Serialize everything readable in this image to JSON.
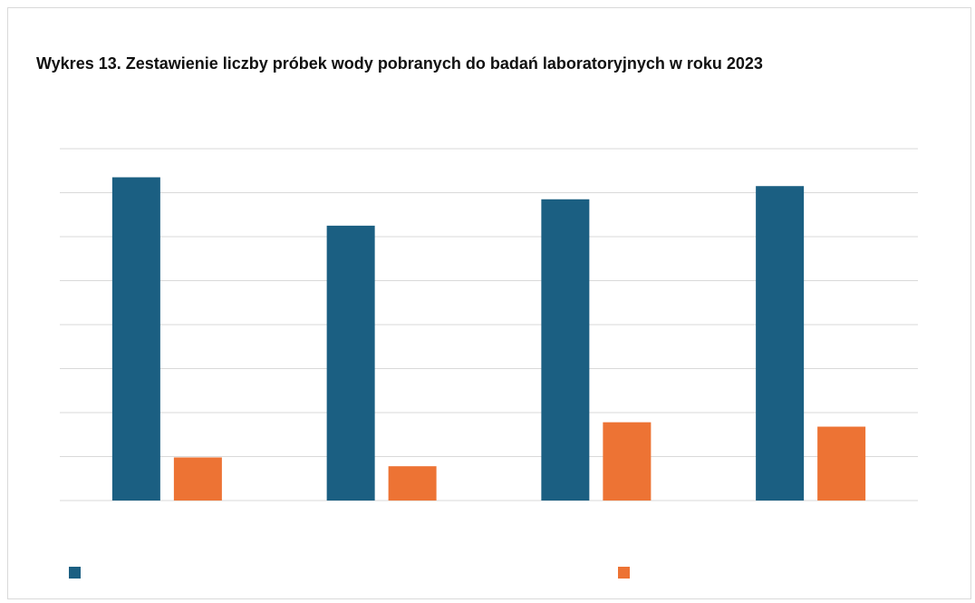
{
  "chart_data": {
    "type": "bar",
    "title": "Wykres 13. Zestawienie liczby próbek wody pobranych do badań laboratoryjnych w roku 2023",
    "xlabel": "",
    "ylabel": "",
    "categories": [
      "",
      "",
      "",
      ""
    ],
    "ylim": [
      0,
      8
    ],
    "grid": true,
    "legend_position": "bottom",
    "series": [
      {
        "name": "",
        "color": "#1b5f82",
        "values": [
          7.35,
          6.25,
          6.85,
          7.15
        ]
      },
      {
        "name": "",
        "color": "#ed7334",
        "values": [
          0.98,
          0.78,
          1.78,
          1.68
        ]
      }
    ]
  }
}
